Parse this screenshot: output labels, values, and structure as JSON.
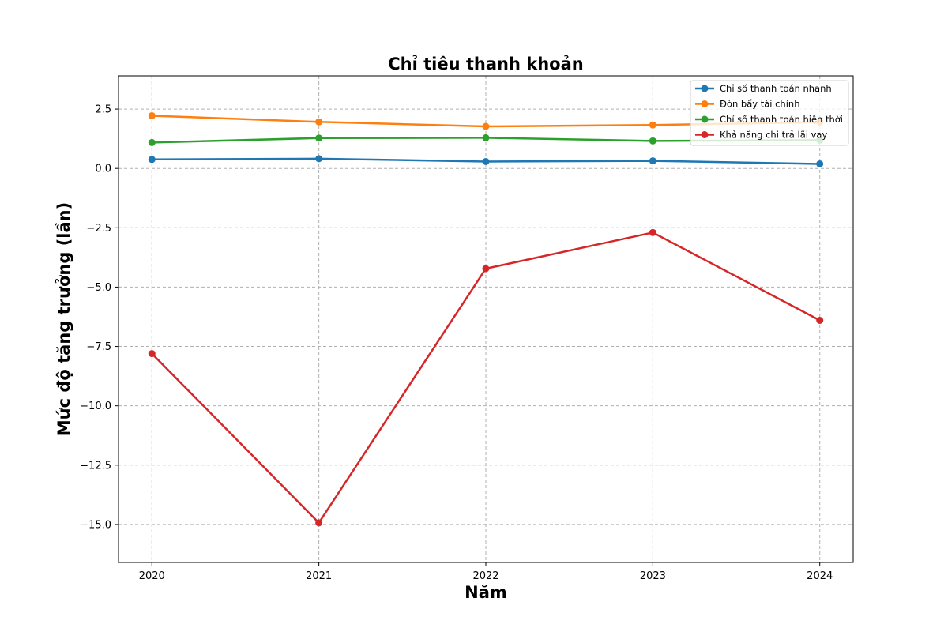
{
  "chart_data": {
    "type": "line",
    "title": "Chỉ tiêu thanh khoản",
    "xlabel": "Năm",
    "ylabel": "Mức độ tăng trưởng (lần)",
    "x": [
      "2020",
      "2021",
      "2022",
      "2023",
      "2024"
    ],
    "xlim": [
      2019.8,
      2024.2
    ],
    "ylim": [
      -16.6,
      3.9
    ],
    "yticks": [
      2.5,
      0.0,
      -2.5,
      -5.0,
      -7.5,
      -10.0,
      -12.5,
      -15.0
    ],
    "ytick_labels": [
      "2.5",
      "0.0",
      "−2.5",
      "−5.0",
      "−7.5",
      "−10.0",
      "−12.5",
      "−15.0"
    ],
    "grid": true,
    "legend_position": "top-right",
    "series": [
      {
        "name": "Chỉ số thanh toán nhanh",
        "color": "#1f77b4",
        "values": [
          0.38,
          0.41,
          0.29,
          0.32,
          0.19
        ]
      },
      {
        "name": "Đòn bẩy tài chính",
        "color": "#ff7f0e",
        "values": [
          2.22,
          1.96,
          1.77,
          1.83,
          1.95
        ]
      },
      {
        "name": "Chỉ số thanh toán hiện thời",
        "color": "#2ca02c",
        "values": [
          1.09,
          1.28,
          1.29,
          1.16,
          1.19
        ]
      },
      {
        "name": "Khả năng chi trả lãi vay",
        "color": "#d62728",
        "values": [
          -7.8,
          -14.93,
          -4.22,
          -2.7,
          -6.4
        ]
      }
    ]
  }
}
